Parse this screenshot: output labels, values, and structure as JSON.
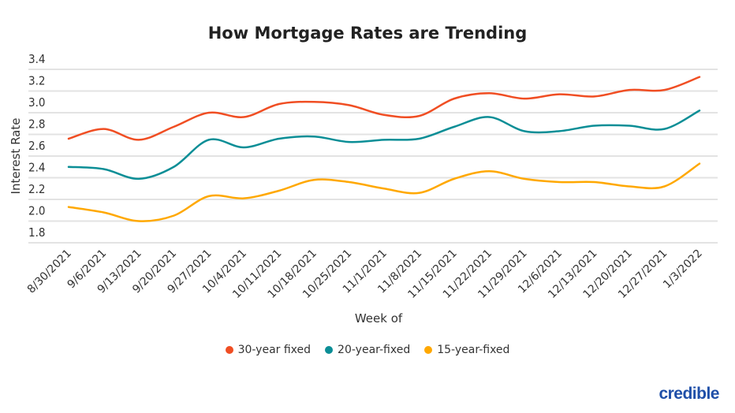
{
  "chart_data": {
    "type": "line",
    "title": "How Mortgage Rates are Trending",
    "xlabel": "Week of",
    "ylabel": "Interest Rate",
    "ylim": [
      1.8,
      3.4
    ],
    "yticks": [
      "3.4",
      "3.2",
      "3.0",
      "2.8",
      "2.6",
      "2.4",
      "2.2",
      "2.0",
      "1.8"
    ],
    "grid": true,
    "legend_position": "bottom",
    "categories": [
      "8/30/2021",
      "9/6/2021",
      "9/13/2021",
      "9/20/2021",
      "9/27/2021",
      "10/4/2021",
      "10/11/2021",
      "10/18/2021",
      "10/25/2021",
      "11/1/2021",
      "11/8/2021",
      "11/15/2021",
      "11/22/2021",
      "11/29/2021",
      "12/6/2021",
      "12/13/2021",
      "12/20/2021",
      "12/27/2021",
      "1/3/2022"
    ],
    "series": [
      {
        "name": "30-year fixed",
        "color": "#f04e23",
        "values": [
          2.76,
          2.85,
          2.75,
          2.87,
          3.0,
          2.96,
          3.08,
          3.1,
          3.07,
          2.98,
          2.97,
          3.13,
          3.18,
          3.13,
          3.17,
          3.15,
          3.21,
          3.21,
          3.33
        ]
      },
      {
        "name": "20-year-fixed",
        "color": "#0b8e96",
        "values": [
          2.5,
          2.48,
          2.39,
          2.5,
          2.75,
          2.68,
          2.76,
          2.78,
          2.73,
          2.75,
          2.76,
          2.87,
          2.96,
          2.83,
          2.83,
          2.88,
          2.88,
          2.85,
          3.02
        ]
      },
      {
        "name": "15-year-fixed",
        "color": "#ffa800",
        "values": [
          2.13,
          2.08,
          2.0,
          2.05,
          2.23,
          2.21,
          2.28,
          2.38,
          2.36,
          2.3,
          2.26,
          2.39,
          2.46,
          2.39,
          2.36,
          2.36,
          2.32,
          2.32,
          2.53
        ]
      }
    ]
  },
  "logo": "credible"
}
